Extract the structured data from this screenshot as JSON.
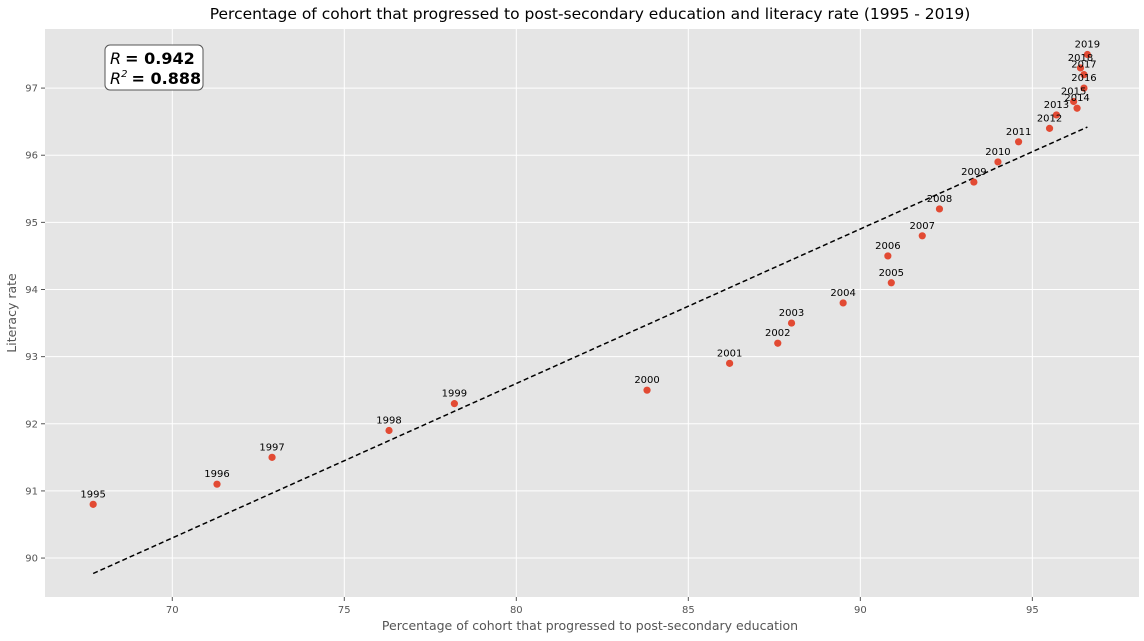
{
  "chart_data": {
    "type": "scatter",
    "title": "Percentage of cohort that progressed to post-secondary education and literacy rate (1995 - 2019)",
    "xlabel": "Percentage of cohort that progressed to post-secondary education",
    "ylabel": "Literacy rate",
    "xlim": [
      66.3,
      98.1
    ],
    "ylim": [
      89.42,
      97.88
    ],
    "xticks": [
      70,
      75,
      80,
      85,
      90,
      95
    ],
    "yticks": [
      90,
      91,
      92,
      93,
      94,
      95,
      96,
      97
    ],
    "grid": true,
    "point_color": "#E24A33",
    "background_color": "#E5E5E5",
    "points": [
      {
        "label": "1995",
        "x": 67.7,
        "y": 90.8
      },
      {
        "label": "1996",
        "x": 71.3,
        "y": 91.1
      },
      {
        "label": "1997",
        "x": 72.9,
        "y": 91.5
      },
      {
        "label": "1998",
        "x": 76.3,
        "y": 91.9
      },
      {
        "label": "1999",
        "x": 78.2,
        "y": 92.3
      },
      {
        "label": "2000",
        "x": 83.8,
        "y": 92.5
      },
      {
        "label": "2001",
        "x": 86.2,
        "y": 92.9
      },
      {
        "label": "2002",
        "x": 87.6,
        "y": 93.2
      },
      {
        "label": "2003",
        "x": 88.0,
        "y": 93.5
      },
      {
        "label": "2004",
        "x": 89.5,
        "y": 93.8
      },
      {
        "label": "2005",
        "x": 90.9,
        "y": 94.1
      },
      {
        "label": "2006",
        "x": 90.8,
        "y": 94.5
      },
      {
        "label": "2007",
        "x": 91.8,
        "y": 94.8
      },
      {
        "label": "2008",
        "x": 92.3,
        "y": 95.2
      },
      {
        "label": "2009",
        "x": 93.3,
        "y": 95.6
      },
      {
        "label": "2010",
        "x": 94.0,
        "y": 95.9
      },
      {
        "label": "2011",
        "x": 94.6,
        "y": 96.2
      },
      {
        "label": "2012",
        "x": 95.5,
        "y": 96.4
      },
      {
        "label": "2013",
        "x": 95.7,
        "y": 96.6
      },
      {
        "label": "2014",
        "x": 96.3,
        "y": 96.7
      },
      {
        "label": "2015",
        "x": 96.2,
        "y": 96.8
      },
      {
        "label": "2016",
        "x": 96.5,
        "y": 97.0
      },
      {
        "label": "2017",
        "x": 96.5,
        "y": 97.2
      },
      {
        "label": "2018",
        "x": 96.4,
        "y": 97.3
      },
      {
        "label": "2019",
        "x": 96.6,
        "y": 97.5
      }
    ],
    "trendline": {
      "x": [
        67.7,
        96.6
      ],
      "y": [
        89.77,
        96.42
      ],
      "style": "dashed",
      "color": "#000000"
    },
    "stats": {
      "r_label": "R",
      "r_value": "= 0.942",
      "r2_label": "R",
      "r2_exp": "2",
      "r2_value": "= 0.888"
    }
  }
}
